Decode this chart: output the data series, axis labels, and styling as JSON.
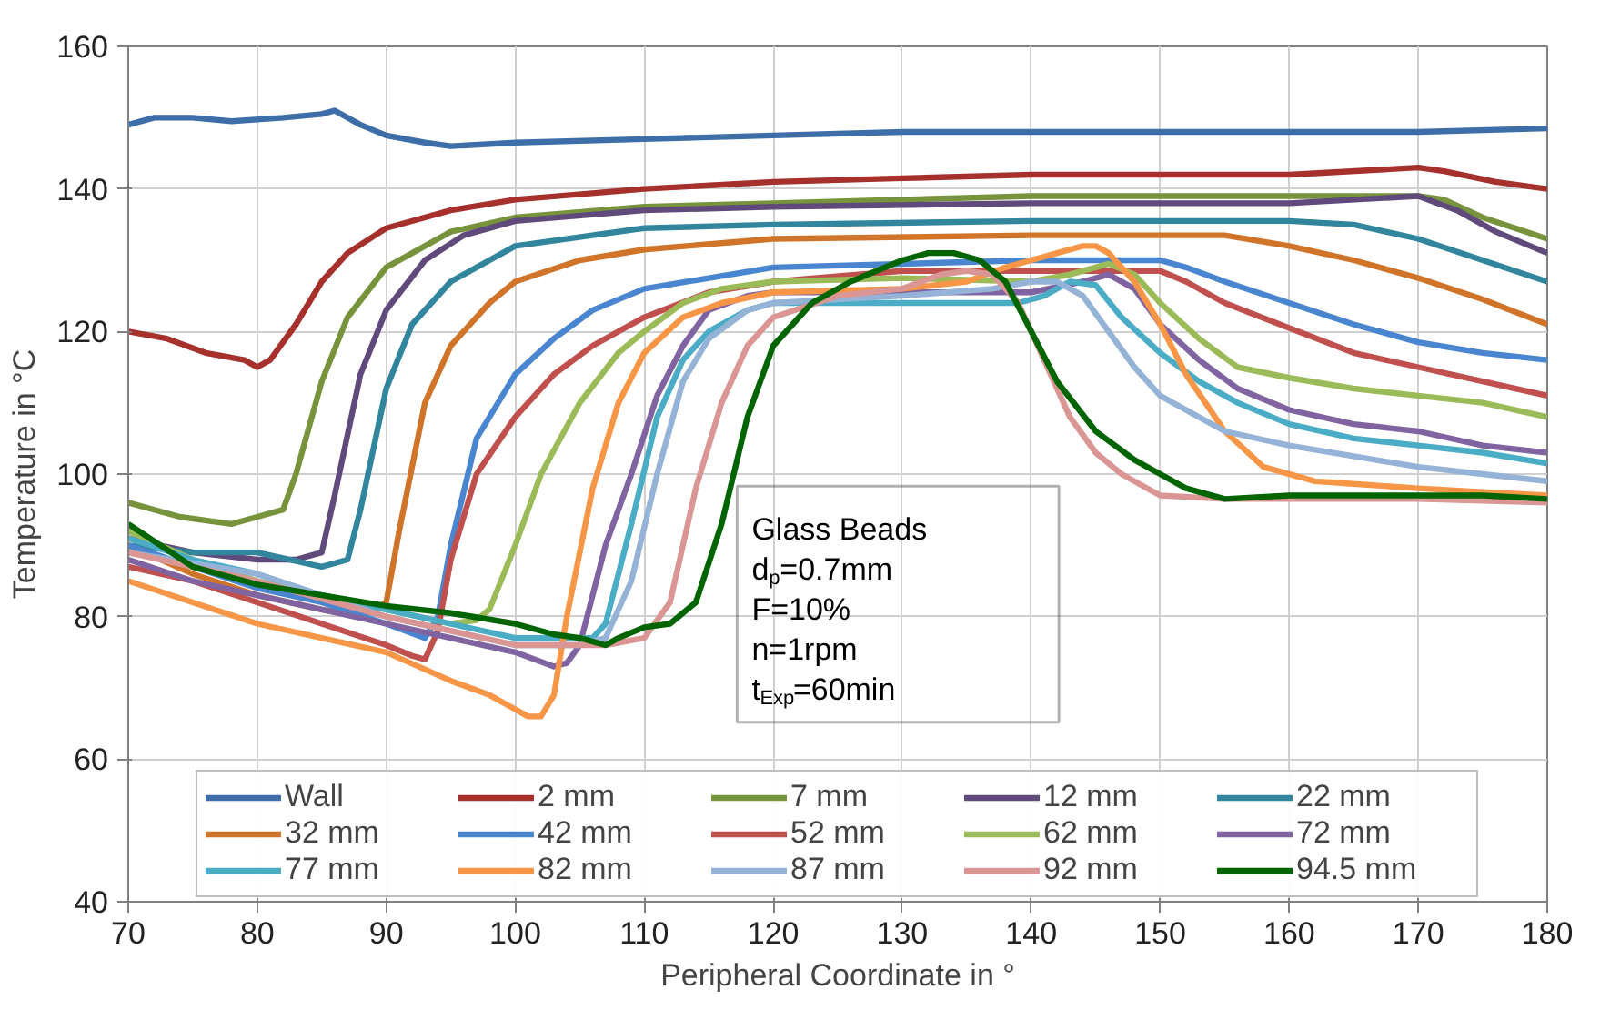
{
  "chart_data": {
    "type": "line",
    "xlabel": "Peripheral Coordinate in °",
    "ylabel": "Temperature in °C",
    "xlim": [
      70,
      180
    ],
    "ylim": [
      40,
      160
    ],
    "xticks": [
      70,
      80,
      90,
      100,
      110,
      120,
      130,
      140,
      150,
      160,
      170,
      180
    ],
    "yticks": [
      40,
      60,
      80,
      100,
      120,
      140,
      160
    ],
    "grid": true,
    "legend": "bottom",
    "line_style": "solid",
    "annotations": [
      "Glass Beads",
      "d$_{p}$=0.7mm",
      "F=10%",
      "n=1rpm",
      "t$_{Exp}$=60min"
    ],
    "series": [
      {
        "name": "Wall",
        "color": "#3d6ea8",
        "x": [
          70,
          72,
          75,
          78,
          82,
          85,
          86,
          88,
          90,
          93,
          95,
          100,
          110,
          120,
          130,
          140,
          150,
          160,
          170,
          180
        ],
        "values": [
          149,
          150,
          150,
          149.5,
          150,
          150.5,
          151,
          149,
          147.5,
          146.5,
          146,
          146.5,
          147,
          147.5,
          148,
          148,
          148,
          148,
          148,
          148.5
        ]
      },
      {
        "name": "2 mm",
        "color": "#a5302c",
        "x": [
          70,
          73,
          76,
          79,
          80,
          81,
          83,
          85,
          87,
          90,
          95,
          100,
          110,
          120,
          130,
          140,
          160,
          170,
          172,
          176,
          180
        ],
        "values": [
          120,
          119,
          117,
          116,
          115,
          116,
          121,
          127,
          131,
          134.5,
          137,
          138.5,
          140,
          141,
          141.5,
          142,
          142,
          143,
          142.5,
          141,
          140
        ]
      },
      {
        "name": "7 mm",
        "color": "#77933c",
        "x": [
          70,
          74,
          78,
          80,
          82,
          83,
          85,
          87,
          90,
          95,
          100,
          110,
          120,
          140,
          160,
          170,
          172,
          175,
          180
        ],
        "values": [
          96,
          94,
          93,
          94,
          95,
          100,
          113,
          122,
          129,
          134,
          136,
          137.5,
          138,
          139,
          139,
          139,
          138.5,
          136,
          133
        ]
      },
      {
        "name": "12 mm",
        "color": "#604a7b",
        "x": [
          70,
          75,
          80,
          83,
          85,
          86,
          88,
          90,
          93,
          96,
          100,
          110,
          120,
          140,
          160,
          170,
          173,
          176,
          180
        ],
        "values": [
          91,
          89,
          88,
          88,
          89,
          97,
          114,
          123,
          130,
          133.5,
          135.5,
          137,
          137.5,
          138,
          138,
          139,
          137,
          134,
          131
        ]
      },
      {
        "name": "22 mm",
        "color": "#31859c",
        "x": [
          70,
          75,
          80,
          85,
          87,
          88,
          90,
          92,
          95,
          100,
          110,
          120,
          140,
          160,
          165,
          170,
          175,
          180
        ],
        "values": [
          90,
          89,
          89,
          87,
          88,
          95,
          112,
          121,
          127,
          132,
          134.5,
          135,
          135.5,
          135.5,
          135,
          133,
          130,
          127
        ]
      },
      {
        "name": "32 mm",
        "color": "#d0742a",
        "x": [
          70,
          75,
          80,
          85,
          88,
          90,
          91,
          93,
          95,
          98,
          100,
          105,
          110,
          120,
          140,
          155,
          160,
          165,
          170,
          175,
          180
        ],
        "values": [
          90,
          86,
          83,
          81,
          80,
          82,
          92,
          110,
          118,
          124,
          127,
          130,
          131.5,
          133,
          133.5,
          133.5,
          132,
          130,
          127.5,
          124.5,
          121
        ]
      },
      {
        "name": "42 mm",
        "color": "#4a86d0",
        "x": [
          70,
          75,
          80,
          85,
          90,
          93,
          94,
          95,
          97,
          100,
          103,
          106,
          110,
          120,
          140,
          150,
          152,
          155,
          160,
          165,
          170,
          175,
          180
        ],
        "values": [
          90,
          87,
          84,
          82,
          79,
          77,
          80,
          90,
          105,
          114,
          119,
          123,
          126,
          129,
          130,
          130,
          129,
          127,
          124,
          121,
          118.5,
          117,
          116
        ]
      },
      {
        "name": "52 mm",
        "color": "#c0504d",
        "x": [
          70,
          75,
          80,
          85,
          90,
          92,
          93,
          94,
          95,
          97,
          100,
          103,
          106,
          110,
          115,
          120,
          130,
          140,
          150,
          152,
          155,
          160,
          165,
          170,
          175,
          180
        ],
        "values": [
          87,
          85,
          82,
          79,
          76,
          74.5,
          74,
          78,
          88,
          100,
          108,
          114,
          118,
          122,
          125.5,
          127,
          128.5,
          128.5,
          128.5,
          127,
          124,
          120.5,
          117,
          115,
          113,
          111
        ]
      },
      {
        "name": "62 mm",
        "color": "#9bbb59",
        "x": [
          70,
          75,
          80,
          85,
          90,
          95,
          97,
          98,
          100,
          102,
          105,
          108,
          110,
          113,
          116,
          120,
          130,
          140,
          143,
          146,
          148,
          150,
          153,
          156,
          160,
          165,
          170,
          175,
          180
        ],
        "values": [
          92,
          88,
          85,
          83,
          81,
          79,
          79.5,
          81,
          90,
          100,
          110,
          117,
          120,
          124,
          126,
          127,
          127.5,
          127,
          128,
          129.5,
          128,
          124,
          119,
          115,
          113.5,
          112,
          111,
          110,
          108
        ]
      },
      {
        "name": "72 mm",
        "color": "#8064a2",
        "x": [
          70,
          75,
          80,
          85,
          90,
          95,
          100,
          103,
          104,
          105,
          107,
          109,
          111,
          113,
          115,
          118,
          120,
          130,
          140,
          144,
          146,
          148,
          150,
          153,
          156,
          160,
          165,
          170,
          175,
          180
        ],
        "values": [
          88,
          85,
          83,
          81,
          79,
          77,
          75,
          73,
          73.5,
          76,
          90,
          100,
          111,
          118,
          123,
          125,
          125.5,
          125.5,
          125.5,
          127,
          128,
          126,
          121,
          116,
          112,
          109,
          107,
          106,
          104,
          103
        ]
      },
      {
        "name": "77 mm",
        "color": "#4bacc6",
        "x": [
          70,
          75,
          80,
          85,
          90,
          95,
          100,
          106,
          107,
          109,
          111,
          113,
          115,
          118,
          120,
          130,
          139,
          141,
          143,
          145,
          147,
          150,
          153,
          156,
          160,
          165,
          170,
          175,
          180
        ],
        "values": [
          91,
          88,
          86,
          83,
          81,
          79,
          77,
          77,
          79,
          93,
          108,
          116,
          120,
          123,
          124,
          124,
          124,
          125,
          127,
          126.5,
          122,
          117,
          113,
          110,
          107,
          105,
          104,
          103,
          101.5
        ]
      },
      {
        "name": "82 mm",
        "color": "#f79646",
        "x": [
          70,
          75,
          80,
          85,
          90,
          95,
          98,
          100,
          101,
          102,
          103,
          104,
          106,
          108,
          110,
          113,
          116,
          120,
          130,
          135,
          138,
          140,
          142,
          144,
          145,
          146,
          148,
          150,
          152,
          155,
          158,
          162,
          166,
          170,
          175,
          180
        ],
        "values": [
          85,
          82,
          79,
          77,
          75,
          71,
          69,
          67,
          66,
          66,
          69,
          80,
          98,
          110,
          117,
          122,
          124,
          125.5,
          126,
          127,
          129,
          130,
          131,
          132,
          132,
          131,
          127,
          121,
          114,
          106,
          101,
          99,
          98.5,
          98,
          97.5,
          97
        ]
      },
      {
        "name": "87 mm",
        "color": "#95b3d7",
        "x": [
          70,
          80,
          90,
          100,
          105,
          107,
          109,
          111,
          113,
          115,
          118,
          120,
          130,
          137,
          140,
          142,
          144,
          146,
          148,
          150,
          155,
          160,
          165,
          170,
          175,
          180
        ],
        "values": [
          89,
          86,
          80,
          76,
          76,
          77,
          85,
          100,
          113,
          119,
          123,
          124,
          125,
          126,
          127,
          127,
          125,
          120,
          115,
          111,
          106,
          104,
          102.5,
          101,
          100,
          99
        ]
      },
      {
        "name": "92 mm",
        "color": "#d99694",
        "x": [
          70,
          80,
          90,
          100,
          107,
          110,
          112,
          114,
          116,
          118,
          120,
          125,
          130,
          133,
          135,
          137,
          139,
          141,
          143,
          145,
          147,
          150,
          155,
          160,
          170,
          180
        ],
        "values": [
          89,
          85,
          80,
          76,
          76,
          77,
          82,
          98,
          110,
          118,
          122,
          125,
          126,
          128,
          128.5,
          128,
          124,
          116,
          108,
          103,
          100,
          97,
          96.5,
          96.5,
          96.5,
          96
        ]
      },
      {
        "name": "94.5 mm",
        "color": "#006400",
        "x": [
          70,
          75,
          80,
          85,
          90,
          95,
          100,
          103,
          105,
          107,
          108,
          110,
          112,
          114,
          116,
          118,
          120,
          123,
          126,
          130,
          132,
          134,
          136,
          138,
          140,
          142,
          145,
          148,
          150,
          152,
          155,
          160,
          170,
          175,
          180
        ],
        "values": [
          93,
          87,
          84.5,
          83,
          81.5,
          80.5,
          79,
          77.5,
          77,
          76,
          77,
          78.5,
          79,
          82,
          93,
          108,
          118,
          124,
          127,
          130,
          131,
          131,
          130,
          127,
          120,
          113,
          106,
          102,
          100,
          98,
          96.5,
          97,
          97,
          97,
          96.5
        ]
      }
    ]
  }
}
